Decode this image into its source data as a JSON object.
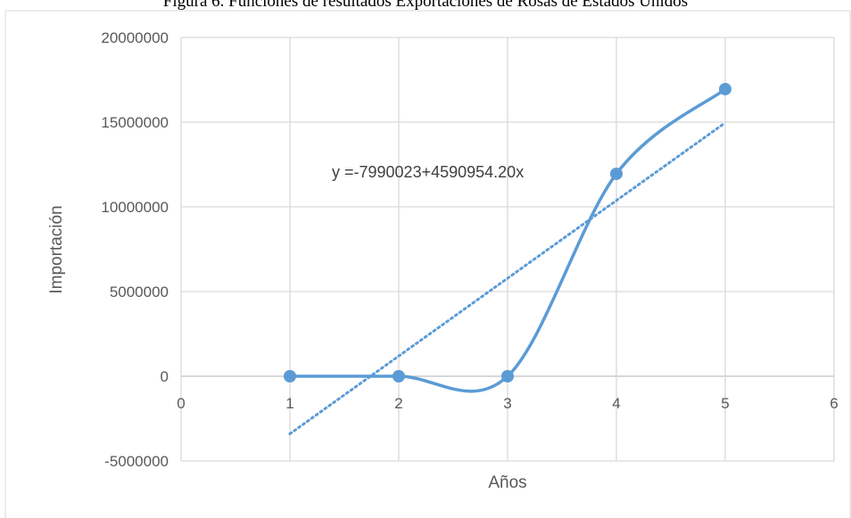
{
  "chart_data": {
    "type": "scatter",
    "title": "Figura 6. Funciones de resultados Exportaciones de Rosas de Estados Unidos",
    "xlabel": "Años",
    "ylabel": "Importación",
    "xlim": [
      0,
      6
    ],
    "ylim": [
      -5000000,
      20000000
    ],
    "x_ticks": [
      0,
      1,
      2,
      3,
      4,
      5,
      6
    ],
    "y_ticks": [
      -5000000,
      0,
      5000000,
      10000000,
      15000000,
      20000000
    ],
    "grid": true,
    "series": [
      {
        "x": [
          1,
          2,
          3,
          4,
          5
        ],
        "y": [
          0,
          0,
          0,
          11950000,
          16950000
        ],
        "style": "smoothed line with markers",
        "color": "#5B9BD5"
      }
    ],
    "trendline": {
      "type": "linear",
      "intercept": -7990023,
      "slope": 4590954.2,
      "x_range": [
        1,
        5
      ],
      "style": "dotted",
      "color": "#5B9BD5"
    },
    "annotations": [
      {
        "text": "y =-7990023+4590954.20x"
      }
    ]
  }
}
